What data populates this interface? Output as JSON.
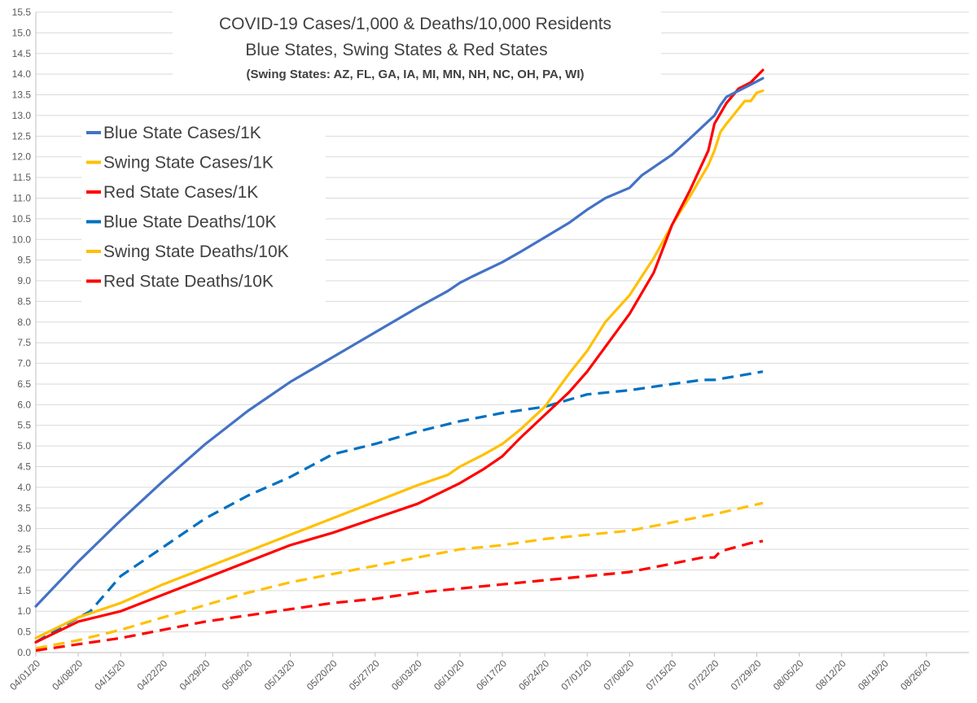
{
  "chart_data": {
    "type": "line",
    "title": "COVID-19 Cases/1,000 & Deaths/10,000 Residents",
    "subtitle": "Blue States, Swing States & Red States",
    "note": "(Swing States: AZ, FL, GA, IA, MI, MN, NH, NC, OH, PA, WI)",
    "xlabel": "",
    "ylabel": "",
    "ylim": [
      0,
      15.5
    ],
    "ytick_step": 0.5,
    "yticks": [
      "0.0",
      "0.5",
      "1.0",
      "1.5",
      "2.0",
      "2.5",
      "3.0",
      "3.5",
      "4.0",
      "4.5",
      "5.0",
      "5.5",
      "6.0",
      "6.5",
      "7.0",
      "7.5",
      "8.0",
      "8.5",
      "9.0",
      "9.5",
      "10.0",
      "10.5",
      "11.0",
      "11.5",
      "12.0",
      "12.5",
      "13.0",
      "13.5",
      "14.0",
      "14.5",
      "15.0",
      "15.5"
    ],
    "xlim": [
      0,
      154
    ],
    "xticks": [
      {
        "day": 0,
        "label": "04/01/20"
      },
      {
        "day": 7,
        "label": "04/08/20"
      },
      {
        "day": 14,
        "label": "04/15/20"
      },
      {
        "day": 21,
        "label": "04/22/20"
      },
      {
        "day": 28,
        "label": "04/29/20"
      },
      {
        "day": 35,
        "label": "05/06/20"
      },
      {
        "day": 42,
        "label": "05/13/20"
      },
      {
        "day": 49,
        "label": "05/20/20"
      },
      {
        "day": 56,
        "label": "05/27/20"
      },
      {
        "day": 63,
        "label": "06/03/20"
      },
      {
        "day": 70,
        "label": "06/10/20"
      },
      {
        "day": 77,
        "label": "06/17/20"
      },
      {
        "day": 84,
        "label": "06/24/20"
      },
      {
        "day": 91,
        "label": "07/01/20"
      },
      {
        "day": 98,
        "label": "07/08/20"
      },
      {
        "day": 105,
        "label": "07/15/20"
      },
      {
        "day": 112,
        "label": "07/22/20"
      },
      {
        "day": 119,
        "label": "07/29/20"
      },
      {
        "day": 126,
        "label": "08/05/20"
      },
      {
        "day": 133,
        "label": "08/12/20"
      },
      {
        "day": 140,
        "label": "08/19/20"
      },
      {
        "day": 147,
        "label": "08/26/20"
      }
    ],
    "legend_position": "top-left",
    "series": [
      {
        "name": "Blue State Cases/1K",
        "color": "#4472c4",
        "style": "solid",
        "x": [
          0,
          7,
          14,
          21,
          28,
          35,
          42,
          49,
          56,
          63,
          68,
          70,
          72,
          77,
          80,
          84,
          88,
          91,
          94,
          98,
          100,
          105,
          108,
          112,
          113,
          114,
          118,
          120
        ],
        "y": [
          1.12,
          2.2,
          3.2,
          4.15,
          5.05,
          5.85,
          6.55,
          7.15,
          7.75,
          8.35,
          8.75,
          8.95,
          9.1,
          9.45,
          9.7,
          10.05,
          10.4,
          10.72,
          11.0,
          11.25,
          11.55,
          12.05,
          12.45,
          13.0,
          13.25,
          13.45,
          13.75,
          13.9
        ]
      },
      {
        "name": "Swing State Cases/1K",
        "color": "#ffc000",
        "style": "solid",
        "x": [
          0,
          7,
          14,
          21,
          28,
          35,
          42,
          49,
          56,
          63,
          68,
          70,
          74,
          77,
          80,
          84,
          88,
          91,
          94,
          98,
          102,
          105,
          108,
          111,
          112,
          113,
          114,
          117,
          118,
          119,
          120
        ],
        "y": [
          0.35,
          0.85,
          1.2,
          1.65,
          2.05,
          2.45,
          2.85,
          3.25,
          3.65,
          4.05,
          4.3,
          4.5,
          4.8,
          5.05,
          5.4,
          5.95,
          6.75,
          7.3,
          8.0,
          8.65,
          9.55,
          10.35,
          11.05,
          11.8,
          12.15,
          12.6,
          12.8,
          13.35,
          13.35,
          13.55,
          13.6
        ]
      },
      {
        "name": "Red State Cases/1K",
        "color": "#ff0000",
        "style": "solid",
        "x": [
          0,
          7,
          14,
          21,
          28,
          35,
          42,
          49,
          56,
          63,
          70,
          74,
          77,
          80,
          84,
          88,
          91,
          94,
          98,
          102,
          105,
          108,
          111,
          112,
          113,
          114,
          116,
          118,
          119,
          120
        ],
        "y": [
          0.25,
          0.75,
          1.0,
          1.4,
          1.8,
          2.2,
          2.6,
          2.9,
          3.25,
          3.6,
          4.1,
          4.45,
          4.75,
          5.2,
          5.75,
          6.3,
          6.8,
          7.4,
          8.2,
          9.2,
          10.35,
          11.2,
          12.15,
          12.8,
          13.05,
          13.3,
          13.65,
          13.8,
          13.95,
          14.1
        ]
      },
      {
        "name": "Blue State Deaths/10K",
        "color": "#0070c0",
        "style": "dashed",
        "x": [
          0,
          4,
          9,
          14,
          21,
          28,
          35,
          42,
          49,
          56,
          63,
          70,
          77,
          84,
          91,
          98,
          105,
          110,
          112,
          120
        ],
        "y": [
          0.25,
          0.6,
          1.0,
          1.85,
          2.55,
          3.25,
          3.8,
          4.25,
          4.8,
          5.05,
          5.35,
          5.6,
          5.8,
          5.95,
          6.25,
          6.35,
          6.5,
          6.6,
          6.6,
          6.8
        ]
      },
      {
        "name": "Swing State Deaths/10K",
        "color": "#ffc000",
        "style": "dashed",
        "x": [
          0,
          7,
          14,
          21,
          28,
          35,
          42,
          49,
          56,
          63,
          70,
          77,
          84,
          91,
          98,
          105,
          112,
          120
        ],
        "y": [
          0.1,
          0.3,
          0.55,
          0.85,
          1.15,
          1.45,
          1.7,
          1.9,
          2.1,
          2.3,
          2.5,
          2.6,
          2.75,
          2.85,
          2.95,
          3.15,
          3.35,
          3.62
        ]
      },
      {
        "name": "Red State Deaths/10K",
        "color": "#ff0000",
        "style": "dashed",
        "x": [
          0,
          7,
          14,
          21,
          28,
          35,
          42,
          49,
          56,
          63,
          70,
          77,
          84,
          91,
          98,
          105,
          110,
          112,
          113,
          118,
          120
        ],
        "y": [
          0.05,
          0.2,
          0.35,
          0.55,
          0.75,
          0.9,
          1.05,
          1.2,
          1.3,
          1.45,
          1.55,
          1.65,
          1.75,
          1.85,
          1.95,
          2.15,
          2.3,
          2.3,
          2.45,
          2.65,
          2.7
        ]
      }
    ]
  }
}
